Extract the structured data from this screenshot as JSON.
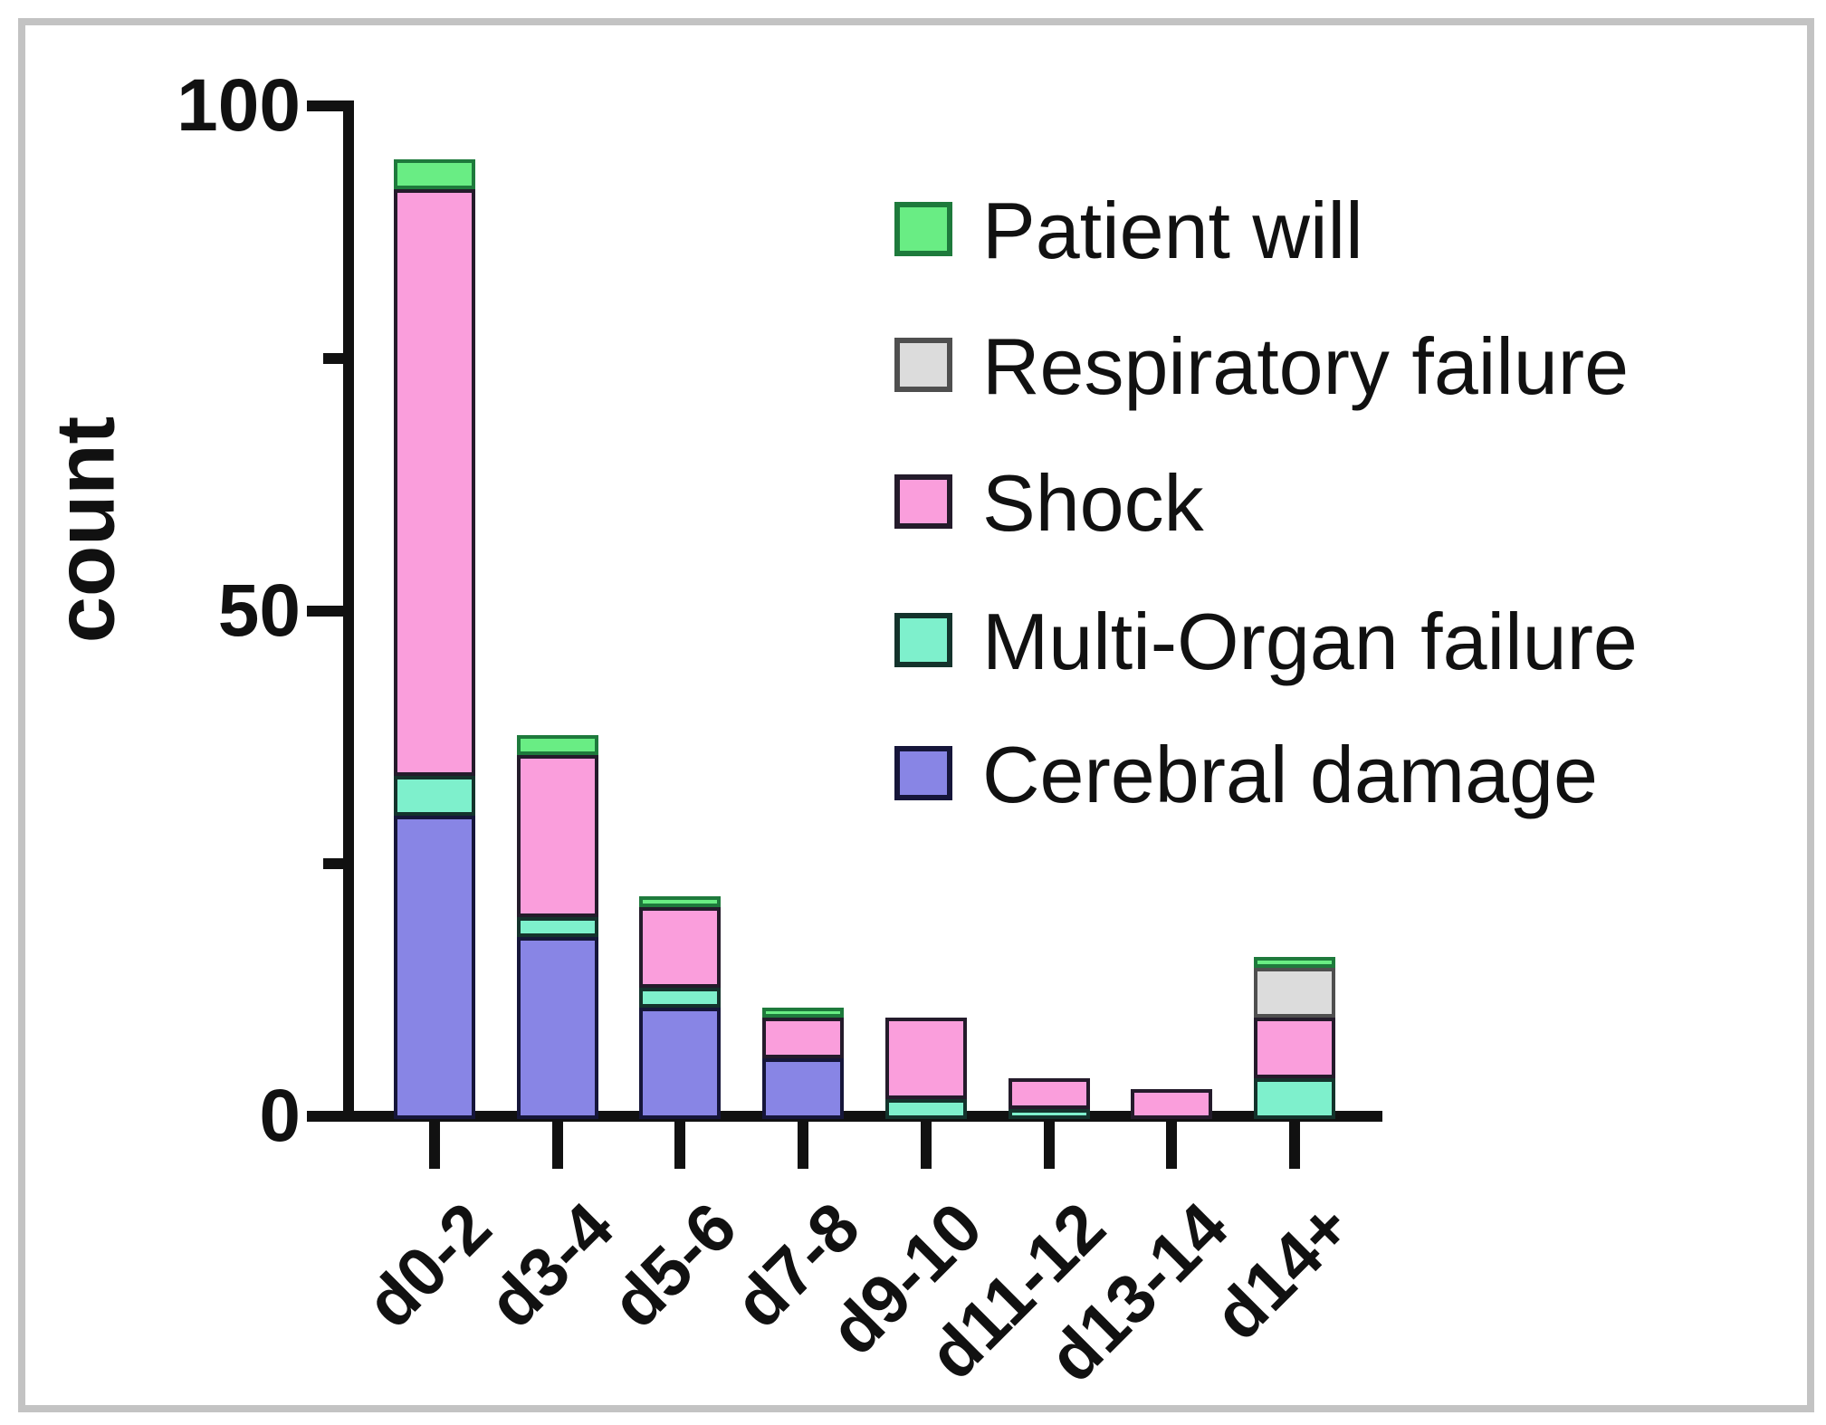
{
  "page": {
    "background": "#ffffff",
    "frame_color": "#c3c3c3",
    "axis_color": "#111111",
    "text_color": "#111111"
  },
  "chart_data": {
    "type": "bar",
    "stacked": true,
    "title": "",
    "xlabel": "",
    "ylabel": "count",
    "ylim": [
      0,
      100
    ],
    "yticks_major": [
      0,
      50,
      100
    ],
    "yticks_minor": [
      25,
      75
    ],
    "grid": false,
    "categories": [
      "d0-2",
      "d3-4",
      "d5-6",
      "d7-8",
      "d9-10",
      "d11-12",
      "d13-14",
      "d14+"
    ],
    "series": [
      {
        "name": "Cerebral damage",
        "color": "#8885E5",
        "border": "#16163a",
        "values": [
          30,
          18,
          11,
          6,
          0,
          0,
          0,
          0
        ]
      },
      {
        "name": "Multi-Organ failure",
        "color": "#7EF0CC",
        "border": "#14332c",
        "values": [
          4,
          2,
          2,
          0,
          2,
          1,
          0,
          4
        ]
      },
      {
        "name": "Shock",
        "color": "#FA9EDC",
        "border": "#241b2b",
        "values": [
          58,
          16,
          8,
          4,
          8,
          3,
          3,
          6
        ]
      },
      {
        "name": "Respiratory failure",
        "color": "#DCDCDC",
        "border": "#4f4f4f",
        "values": [
          0,
          0,
          0,
          0,
          0,
          0,
          0,
          5
        ]
      },
      {
        "name": "Patient will",
        "color": "#69ED84",
        "border": "#1e7a3c",
        "values": [
          3,
          2,
          1,
          1,
          0,
          0,
          0,
          1
        ]
      }
    ],
    "stack_totals": [
      95,
      38,
      22,
      11,
      10,
      4,
      3,
      16
    ],
    "legend": {
      "position": "top-right-inside",
      "items_top_to_bottom": [
        "Patient will",
        "Respiratory failure",
        "Shock",
        "Multi-Organ failure",
        "Cerebral damage"
      ]
    }
  }
}
